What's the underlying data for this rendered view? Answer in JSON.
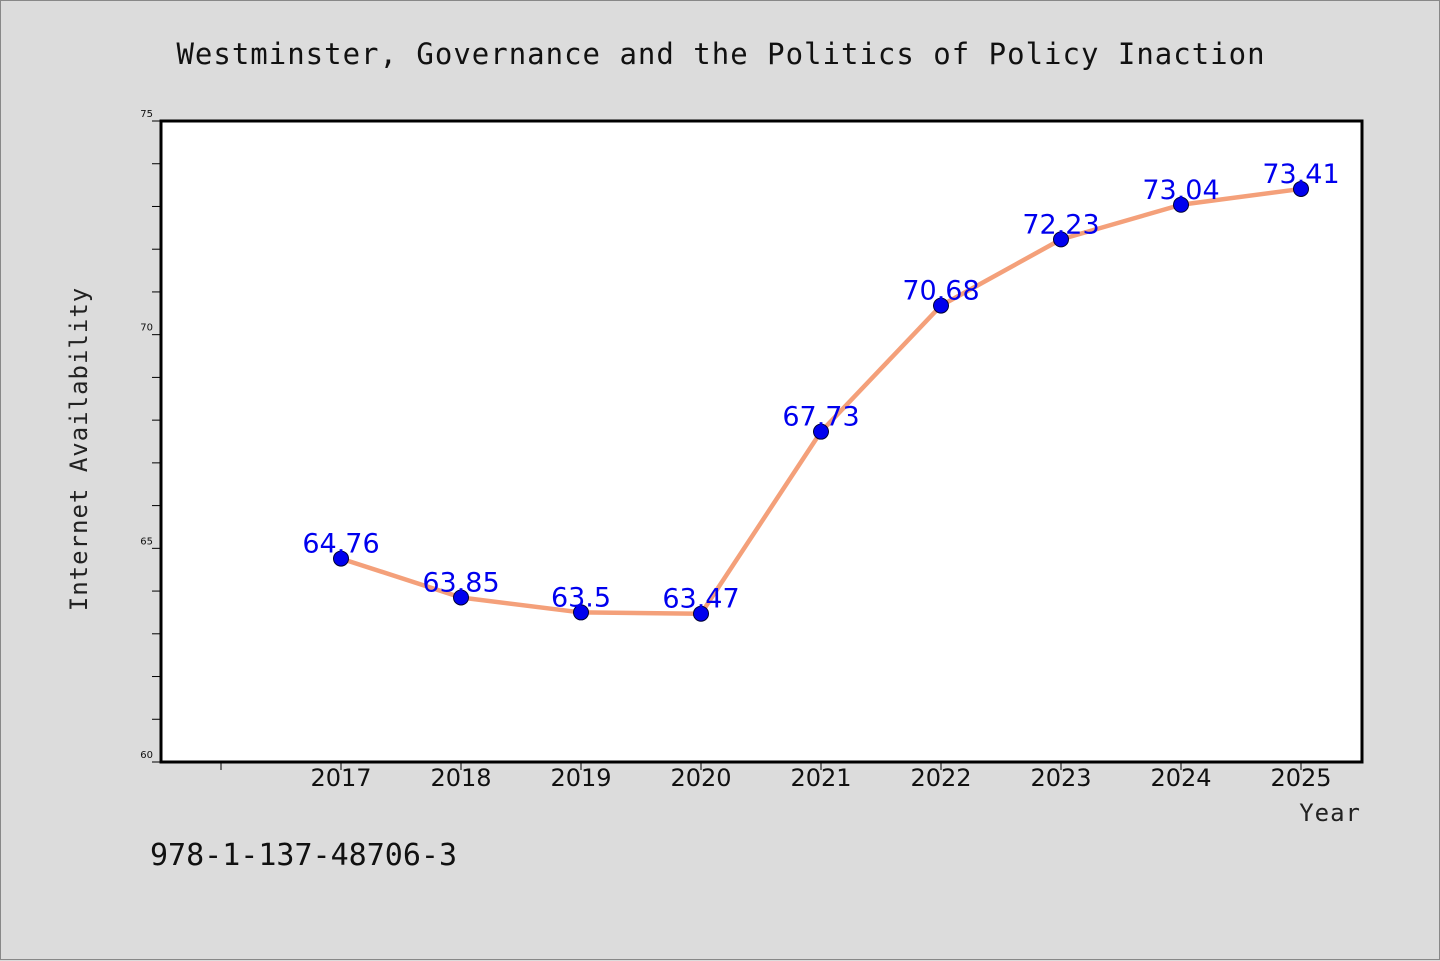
{
  "caption": "978-1-137-48706-3",
  "colors": {
    "background": "#dcdcdc",
    "plot_background": "#ffffff",
    "line": "#f4a07a",
    "marker": "#0000ee",
    "data_label": "#0000ee"
  },
  "chart_data": {
    "type": "line",
    "title": "Westminster, Governance and the Politics of Policy Inaction",
    "xlabel": "Year",
    "ylabel": "Internet Availability",
    "categories": [
      "2017",
      "2018",
      "2019",
      "2020",
      "2021",
      "2022",
      "2023",
      "2024",
      "2025"
    ],
    "series": [
      {
        "values": [
          64.76,
          63.85,
          63.5,
          63.47,
          67.73,
          70.68,
          72.23,
          73.04,
          73.41
        ],
        "labels": [
          "64.76",
          "63.85",
          "63.5",
          "63.47",
          "67.73",
          "70.68",
          "72.23",
          "73.04",
          "73.41"
        ]
      }
    ],
    "ylim": [
      60,
      75
    ],
    "y_ticks": [
      "60",
      "65",
      "70",
      "75"
    ],
    "y_minor_step": 1,
    "grid": false,
    "legend": "none",
    "marker": "circle"
  }
}
